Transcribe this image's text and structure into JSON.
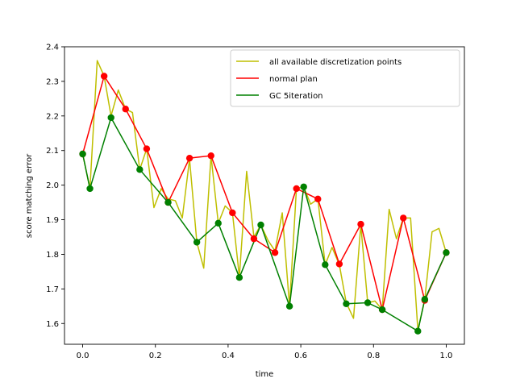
{
  "chart_data": {
    "type": "line",
    "xlabel": "time",
    "ylabel": "score matching error",
    "xlim": [
      -0.05,
      1.05
    ],
    "ylim": [
      1.54,
      2.4
    ],
    "xticks": [
      "0.0",
      "0.2",
      "0.4",
      "0.6",
      "0.8",
      "1.0"
    ],
    "yticks": [
      "1.6",
      "1.7",
      "1.8",
      "1.9",
      "2.0",
      "2.1",
      "2.2",
      "2.3",
      "2.4"
    ],
    "legend_position": "top-right",
    "series": [
      {
        "name": "all available discretization points",
        "color": "#bfbf00",
        "markers": false,
        "x": [
          0.0,
          0.02,
          0.04,
          0.059,
          0.078,
          0.098,
          0.118,
          0.137,
          0.157,
          0.176,
          0.196,
          0.216,
          0.235,
          0.255,
          0.274,
          0.294,
          0.314,
          0.333,
          0.353,
          0.373,
          0.392,
          0.412,
          0.431,
          0.451,
          0.471,
          0.49,
          0.51,
          0.529,
          0.549,
          0.569,
          0.588,
          0.608,
          0.627,
          0.647,
          0.667,
          0.686,
          0.706,
          0.725,
          0.745,
          0.765,
          0.784,
          0.804,
          0.824,
          0.843,
          0.863,
          0.882,
          0.902,
          0.922,
          0.941,
          0.961,
          0.98,
          1.0
        ],
        "y": [
          2.09,
          1.99,
          2.36,
          2.315,
          2.2,
          2.275,
          2.22,
          2.21,
          2.045,
          2.105,
          1.935,
          1.99,
          1.96,
          1.955,
          1.905,
          2.075,
          1.835,
          1.76,
          2.085,
          1.89,
          1.94,
          1.92,
          1.735,
          2.04,
          1.85,
          1.885,
          1.84,
          1.81,
          1.92,
          1.65,
          1.99,
          1.995,
          1.945,
          1.96,
          1.77,
          1.82,
          1.77,
          1.66,
          1.615,
          1.885,
          1.66,
          1.665,
          1.64,
          1.93,
          1.845,
          1.905,
          1.905,
          1.58,
          1.67,
          1.865,
          1.875,
          1.805
        ]
      },
      {
        "name": "normal plan",
        "color": "#ff0000",
        "markers": true,
        "x": [
          0.0,
          0.059,
          0.118,
          0.176,
          0.235,
          0.294,
          0.353,
          0.412,
          0.471,
          0.529,
          0.588,
          0.647,
          0.706,
          0.765,
          0.824,
          0.882,
          0.941,
          1.0
        ],
        "y": [
          2.09,
          2.315,
          2.22,
          2.105,
          1.95,
          2.078,
          2.085,
          1.92,
          1.845,
          1.805,
          1.99,
          1.96,
          1.772,
          1.887,
          1.64,
          1.905,
          1.667,
          1.805
        ]
      },
      {
        "name": "GC 5iteration",
        "color": "#008000",
        "markers": true,
        "x": [
          0.0,
          0.02,
          0.078,
          0.157,
          0.235,
          0.314,
          0.373,
          0.431,
          0.49,
          0.569,
          0.608,
          0.667,
          0.725,
          0.784,
          0.824,
          0.922,
          0.941,
          1.0
        ],
        "y": [
          2.09,
          1.99,
          2.195,
          2.045,
          1.95,
          1.835,
          1.89,
          1.733,
          1.885,
          1.65,
          1.995,
          1.77,
          1.657,
          1.66,
          1.64,
          1.578,
          1.67,
          1.805
        ]
      }
    ]
  }
}
